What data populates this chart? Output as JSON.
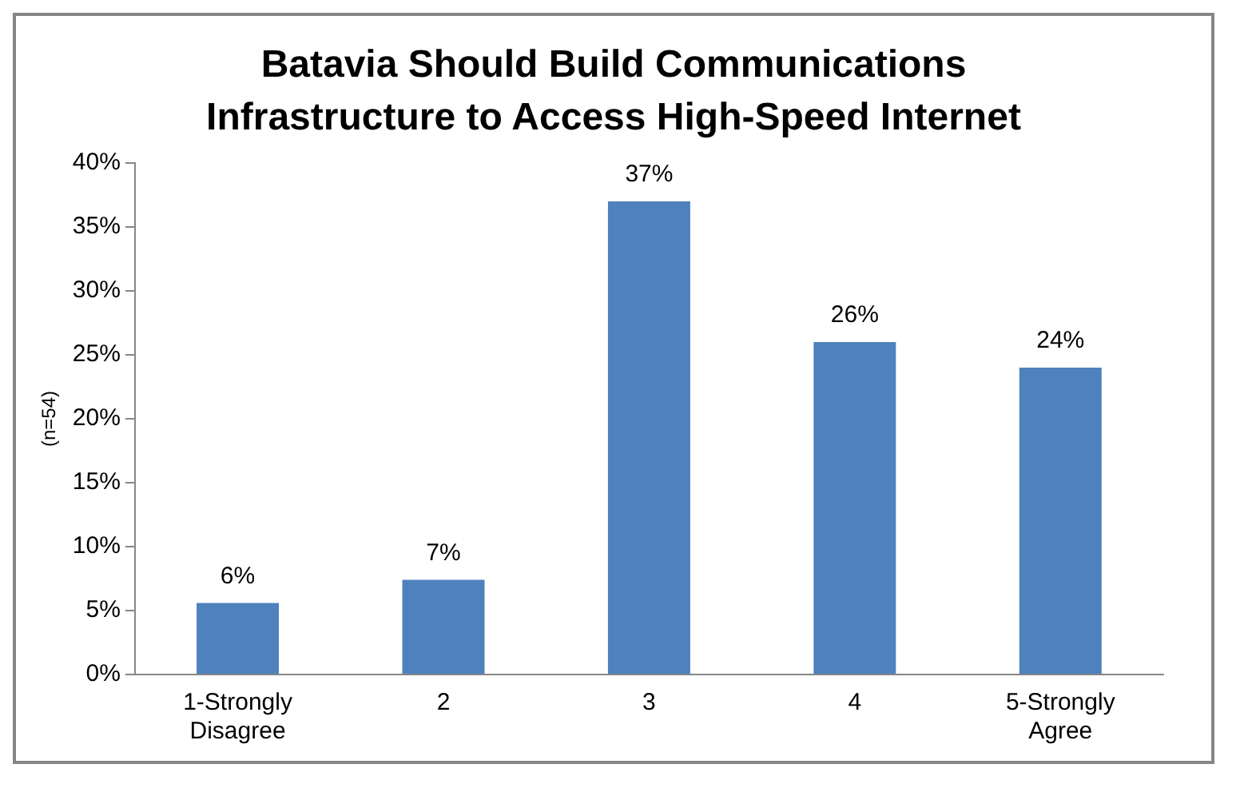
{
  "chart_data": {
    "type": "bar",
    "title": "Batavia Should Build Communications Infrastructure to Access High-Speed Internet",
    "ylabel": "(n=54)",
    "categories": [
      "1-Strongly Disagree",
      "2",
      "3",
      "4",
      "5-Strongly Agree"
    ],
    "values": [
      5.6,
      7.4,
      37,
      26,
      24
    ],
    "value_labels": [
      "6%",
      "7%",
      "37%",
      "26%",
      "24%"
    ],
    "color": "#4f81bd",
    "ylim": [
      0,
      40
    ],
    "yticks": [
      {
        "value": 0,
        "label": "0%"
      },
      {
        "value": 5,
        "label": "5%"
      },
      {
        "value": 10,
        "label": "10%"
      },
      {
        "value": 15,
        "label": "15%"
      },
      {
        "value": 20,
        "label": "20%"
      },
      {
        "value": 25,
        "label": "25%"
      },
      {
        "value": 30,
        "label": "30%"
      },
      {
        "value": 35,
        "label": "35%"
      },
      {
        "value": 40,
        "label": "40%"
      }
    ],
    "grid": false,
    "legend": false
  }
}
